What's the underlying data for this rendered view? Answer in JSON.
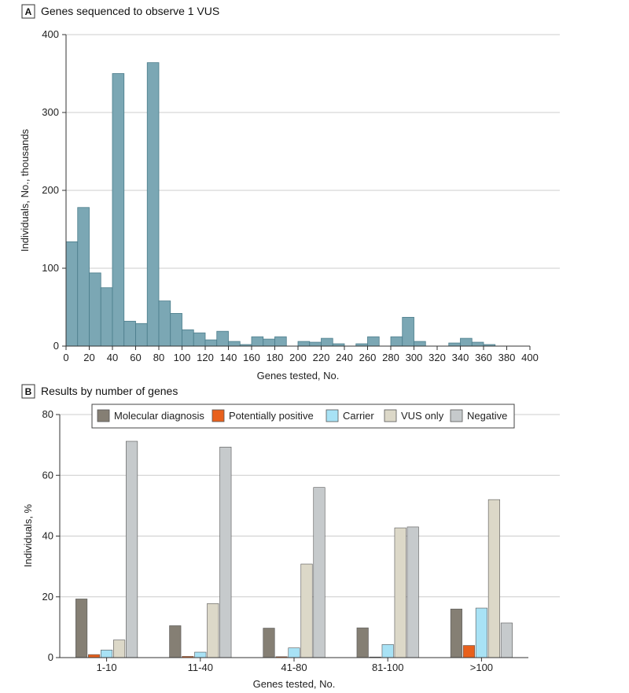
{
  "colors": {
    "hist_bar": "#7ba7b4",
    "hist_edge": "#4a7c8a",
    "grid": "#cccccc",
    "axis": "#333333",
    "molecular": "#857f74",
    "potential": "#e8601c",
    "carrier": "#a8e2f5",
    "vus": "#dcd8c8",
    "negative": "#c6cacc"
  },
  "panelA": {
    "letter": "A",
    "title": "Genes sequenced to observe 1 VUS",
    "chart_data": {
      "type": "bar",
      "title": "Genes sequenced to observe 1 VUS",
      "xlabel": "Genes tested, No.",
      "ylabel": "Individuals, No., thousands",
      "xlim": [
        0,
        400
      ],
      "ylim": [
        0,
        400
      ],
      "bin_width": 10,
      "x_ticks": [
        0,
        20,
        40,
        60,
        80,
        100,
        120,
        140,
        160,
        180,
        200,
        220,
        240,
        260,
        280,
        300,
        320,
        340,
        360,
        380,
        400
      ],
      "x_tick_labels": [
        "0",
        "20",
        "40",
        "60",
        "80",
        "100",
        "120",
        "140",
        "160",
        "180",
        "200",
        "220",
        "240",
        "260",
        "280",
        "300",
        "320",
        "340",
        "360",
        "380",
        "400"
      ],
      "y_ticks": [
        0,
        100,
        200,
        300,
        400
      ],
      "y_tick_labels": [
        "0",
        "100",
        "200",
        "300",
        "400"
      ],
      "bins": [
        {
          "x": 5,
          "value": 134
        },
        {
          "x": 15,
          "value": 178
        },
        {
          "x": 25,
          "value": 94
        },
        {
          "x": 35,
          "value": 75
        },
        {
          "x": 45,
          "value": 350
        },
        {
          "x": 55,
          "value": 32
        },
        {
          "x": 65,
          "value": 29
        },
        {
          "x": 75,
          "value": 364
        },
        {
          "x": 85,
          "value": 58
        },
        {
          "x": 95,
          "value": 42
        },
        {
          "x": 105,
          "value": 21
        },
        {
          "x": 115,
          "value": 17
        },
        {
          "x": 125,
          "value": 8
        },
        {
          "x": 135,
          "value": 19
        },
        {
          "x": 145,
          "value": 6
        },
        {
          "x": 155,
          "value": 2
        },
        {
          "x": 165,
          "value": 12
        },
        {
          "x": 175,
          "value": 9
        },
        {
          "x": 185,
          "value": 12
        },
        {
          "x": 195,
          "value": 0
        },
        {
          "x": 205,
          "value": 6
        },
        {
          "x": 215,
          "value": 5
        },
        {
          "x": 225,
          "value": 10
        },
        {
          "x": 235,
          "value": 3
        },
        {
          "x": 245,
          "value": 0
        },
        {
          "x": 255,
          "value": 3
        },
        {
          "x": 265,
          "value": 12
        },
        {
          "x": 275,
          "value": 0
        },
        {
          "x": 285,
          "value": 12
        },
        {
          "x": 295,
          "value": 37
        },
        {
          "x": 305,
          "value": 6
        },
        {
          "x": 315,
          "value": 0
        },
        {
          "x": 325,
          "value": 0
        },
        {
          "x": 335,
          "value": 4
        },
        {
          "x": 345,
          "value": 10
        },
        {
          "x": 355,
          "value": 5
        },
        {
          "x": 365,
          "value": 2
        },
        {
          "x": 375,
          "value": 0
        },
        {
          "x": 385,
          "value": 0
        },
        {
          "x": 395,
          "value": 0
        }
      ]
    }
  },
  "panelB": {
    "letter": "B",
    "title": "Results by number of genes",
    "chart_data": {
      "type": "bar",
      "title": "Results by number of genes",
      "xlabel": "Genes tested, No.",
      "ylabel": "Individuals, %",
      "ylim": [
        0,
        80
      ],
      "y_ticks": [
        0,
        20,
        40,
        60,
        80
      ],
      "y_tick_labels": [
        "0",
        "20",
        "40",
        "60",
        "80"
      ],
      "categories": [
        "1-10",
        "11-40",
        "41-80",
        "81-100",
        ">100"
      ],
      "legend_position": "top-center",
      "series": [
        {
          "name": "Molecular diagnosis",
          "color_key": "molecular",
          "values": [
            19.3,
            10.5,
            9.7,
            9.8,
            16.0
          ]
        },
        {
          "name": "Potentially positive",
          "color_key": "potential",
          "values": [
            1.0,
            0.4,
            0.3,
            0.2,
            4.0
          ]
        },
        {
          "name": "Carrier",
          "color_key": "carrier",
          "values": [
            2.5,
            1.8,
            3.2,
            4.3,
            16.3
          ]
        },
        {
          "name": "VUS only",
          "color_key": "vus",
          "values": [
            5.8,
            17.8,
            30.8,
            42.7,
            52.0
          ]
        },
        {
          "name": "Negative",
          "color_key": "negative",
          "values": [
            71.2,
            69.3,
            56.0,
            43.0,
            11.4
          ]
        }
      ]
    }
  }
}
